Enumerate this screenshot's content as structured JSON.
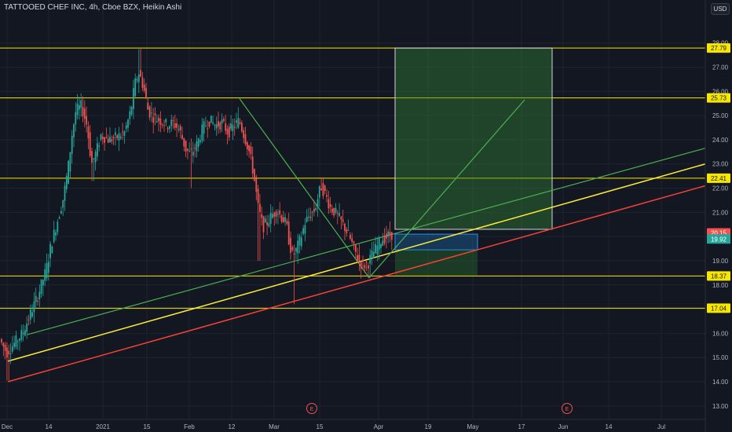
{
  "header": {
    "title": "TATTOOED CHEF INC, 4h, Cboe BZX, Heikin Ashi",
    "currency": "USD"
  },
  "colors": {
    "background": "#131722",
    "grid": "#1f2331",
    "up": "#26a69a",
    "down": "#ef5350",
    "horizontal_level": "#f7e600",
    "yellow_trend": "#ffeb3b",
    "red_trend": "#f44336",
    "green_trend": "#4caf50",
    "target_box": "#2e7d32",
    "entry_box": "#2196f3",
    "price_tag": "#f7e600"
  },
  "chart_data": {
    "type": "candlestick",
    "x_ticks": [
      "Dec",
      "14",
      "2021",
      "15",
      "Feb",
      "12",
      "Mar",
      "15",
      "Apr",
      "19",
      "May",
      "17",
      "Jun",
      "14",
      "Jul"
    ],
    "y_ticks": [
      "13.00",
      "14.00",
      "15.00",
      "16.00",
      "17.00",
      "18.00",
      "19.00",
      "20.00",
      "21.00",
      "22.00",
      "23.00",
      "24.00",
      "25.00",
      "26.00",
      "27.00",
      "28.00"
    ],
    "ylim": [
      12.8,
      28.25
    ],
    "horizontal_levels": [
      {
        "value": 27.79,
        "label": "27.79"
      },
      {
        "value": 25.73,
        "label": "25.73"
      },
      {
        "value": 22.41,
        "label": "22.41"
      },
      {
        "value": 18.37,
        "label": "18.37"
      },
      {
        "value": 17.04,
        "label": "17.04"
      }
    ],
    "last_price": {
      "value": 20.15,
      "label": "20.15"
    },
    "second_price": {
      "value": 19.9,
      "label": "19.92"
    },
    "earnings_markers": [
      "E",
      "E"
    ],
    "price_path": [
      [
        0,
        15.8
      ],
      [
        10,
        15.2
      ],
      [
        20,
        15.6
      ],
      [
        30,
        16.0
      ],
      [
        40,
        16.8
      ],
      [
        50,
        17.6
      ],
      [
        60,
        18.6
      ],
      [
        66,
        19.6
      ],
      [
        74,
        20.6
      ],
      [
        82,
        21.6
      ],
      [
        88,
        22.8
      ],
      [
        93,
        24.2
      ],
      [
        98,
        25.2
      ],
      [
        105,
        25.4
      ],
      [
        112,
        24.6
      ],
      [
        118,
        23.0
      ],
      [
        124,
        23.5
      ],
      [
        130,
        24.2
      ],
      [
        140,
        24.0
      ],
      [
        150,
        24.1
      ],
      [
        160,
        24.3
      ],
      [
        168,
        25.2
      ],
      [
        173,
        26.3
      ],
      [
        178,
        26.8
      ],
      [
        184,
        26.2
      ],
      [
        190,
        25.2
      ],
      [
        198,
        24.9
      ],
      [
        206,
        24.8
      ],
      [
        214,
        24.6
      ],
      [
        222,
        24.7
      ],
      [
        230,
        24.4
      ],
      [
        238,
        23.6
      ],
      [
        244,
        23.4
      ],
      [
        252,
        23.8
      ],
      [
        260,
        24.5
      ],
      [
        268,
        24.8
      ],
      [
        276,
        24.6
      ],
      [
        284,
        24.7
      ],
      [
        292,
        24.3
      ],
      [
        300,
        24.6
      ],
      [
        306,
        24.8
      ],
      [
        312,
        24.2
      ],
      [
        318,
        23.6
      ],
      [
        322,
        23.0
      ],
      [
        326,
        22.2
      ],
      [
        330,
        21.2
      ],
      [
        336,
        20.4
      ],
      [
        342,
        20.6
      ],
      [
        348,
        20.9
      ],
      [
        354,
        21.1
      ],
      [
        360,
        20.8
      ],
      [
        366,
        20.5
      ],
      [
        370,
        19.7
      ],
      [
        374,
        19.2
      ],
      [
        378,
        19.4
      ],
      [
        384,
        19.9
      ],
      [
        390,
        20.6
      ],
      [
        396,
        20.9
      ],
      [
        402,
        21.1
      ],
      [
        406,
        21.6
      ],
      [
        410,
        22.1
      ],
      [
        416,
        21.7
      ],
      [
        422,
        21.2
      ],
      [
        428,
        21.0
      ],
      [
        434,
        20.7
      ],
      [
        440,
        20.4
      ],
      [
        446,
        20.0
      ],
      [
        452,
        19.5
      ],
      [
        458,
        19.0
      ],
      [
        464,
        18.8
      ],
      [
        470,
        18.9
      ],
      [
        476,
        19.3
      ],
      [
        482,
        19.6
      ],
      [
        488,
        19.9
      ],
      [
        494,
        20.0
      ],
      [
        500,
        20.1
      ]
    ]
  }
}
